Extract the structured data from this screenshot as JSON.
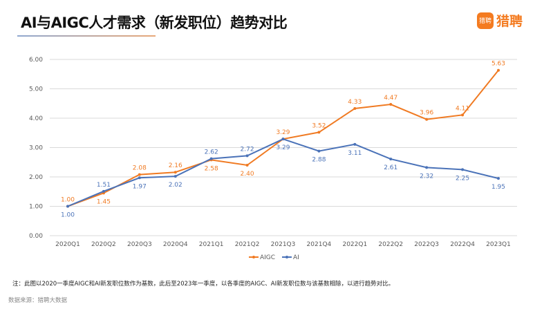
{
  "header": {
    "title": "AI与AIGC人才需求（新发职位）趋势对比",
    "logo_text": "猎聘",
    "logo_icon_text": "猎聘"
  },
  "footer": {
    "note": "注：此图以2020一季度AIGC和AI新发职位数作为基数，此后至2023年一季度，以各季度的AIGC、AI新发职位数与该基数相除，以进行趋势对比。",
    "source": "数据来源：猎聘大数据"
  },
  "chart_data": {
    "type": "line",
    "title": "AI与AIGC人才需求（新发职位）趋势对比",
    "categories": [
      "2020Q1",
      "2020Q2",
      "2020Q3",
      "2020Q4",
      "2021Q1",
      "2021Q2",
      "2021Q3",
      "2021Q4",
      "2022Q1",
      "2022Q2",
      "2022Q3",
      "2022Q4",
      "2023Q1"
    ],
    "ylim": [
      0,
      6
    ],
    "yticks": [
      "0.00",
      "1.00",
      "2.00",
      "3.00",
      "4.00",
      "5.00",
      "6.00"
    ],
    "grid": true,
    "legend": "bottom",
    "series": [
      {
        "name": "AIGC",
        "color": "#f07a22",
        "values": [
          1.0,
          1.45,
          2.08,
          2.16,
          2.58,
          2.4,
          3.29,
          3.52,
          4.33,
          4.47,
          3.96,
          4.11,
          5.63
        ],
        "label_pos": [
          "above",
          "below",
          "above",
          "above",
          "below",
          "below",
          "above",
          "above",
          "above",
          "above",
          "above",
          "above",
          "above"
        ]
      },
      {
        "name": "AI",
        "color": "#4a72b8",
        "values": [
          1.0,
          1.51,
          1.97,
          2.02,
          2.62,
          2.72,
          3.29,
          2.88,
          3.11,
          2.61,
          2.32,
          2.25,
          1.95
        ],
        "label_pos": [
          "below",
          "above",
          "below",
          "below",
          "above",
          "above",
          "below",
          "below",
          "below",
          "below",
          "below",
          "below",
          "below"
        ]
      }
    ]
  }
}
